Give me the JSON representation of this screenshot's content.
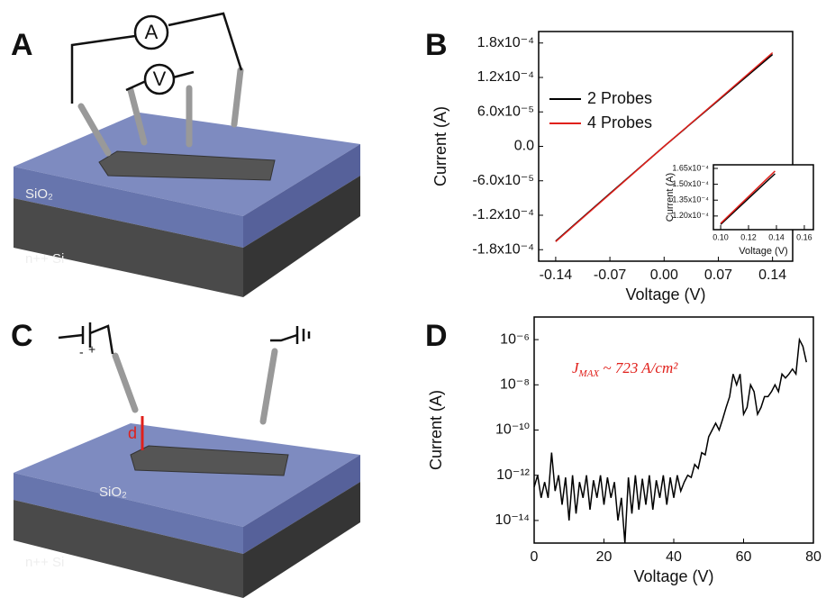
{
  "diagram_a": {
    "panel": "A",
    "ammeter": "A",
    "voltmeter": "V",
    "oxide": "SiO₂",
    "substrate": "n++ Si"
  },
  "diagram_c": {
    "panel": "C",
    "bias_minus": "-",
    "bias_plus": "+",
    "gap": "d",
    "oxide": "SiO₂",
    "substrate": "n++ Si"
  },
  "chart_data": [
    {
      "type": "line",
      "panel": "B",
      "x_label": "Voltage (V)",
      "y_label": "Current (A)",
      "xlim": [
        -0.162,
        0.166
      ],
      "ylim": [
        -0.0002,
        0.0002
      ],
      "xticks": [
        -0.14,
        -0.07,
        {
          "value": 0,
          "label": "0.00"
        },
        0.07,
        0.14
      ],
      "yticks": [
        {
          "value": 0.00018,
          "label": "1.8x10⁻⁴"
        },
        {
          "value": 0.00012,
          "label": "1.2x10⁻⁴"
        },
        {
          "value": 6e-05,
          "label": "6.0x10⁻⁵"
        },
        {
          "value": 0,
          "label": "0.0"
        },
        {
          "value": -6e-05,
          "label": "-6.0x10⁻⁵"
        },
        {
          "value": -0.00012,
          "label": "-1.2x10⁻⁴"
        },
        {
          "value": -0.00018,
          "label": "-1.8x10⁻⁴"
        }
      ],
      "x": [
        -0.14,
        -0.07,
        0,
        0.07,
        0.14
      ],
      "series": [
        {
          "name": "2 Probes",
          "color": "#000000",
          "values": [
            -0.000165,
            -8.2e-05,
            0,
            8e-05,
            0.00016
          ]
        },
        {
          "name": "4 Probes",
          "color": "#e0201b",
          "values": [
            -0.000166,
            -8.3e-05,
            0,
            8.1e-05,
            0.000163
          ]
        }
      ]
    },
    {
      "type": "line",
      "x_label": "Voltage (V)",
      "y_label": "Current (A)",
      "xlim": [
        0.0948,
        0.1665
      ],
      "ylim": [
        0.0001071,
        0.0001684
      ],
      "xticks": [
        {
          "value": 0.1,
          "label": "0.10"
        },
        0.12,
        0.14,
        0.16
      ],
      "yticks": [
        {
          "value": 0.000165,
          "label": "1.65x10⁻⁴"
        },
        {
          "value": 0.00015,
          "label": "1.50x10⁻⁴"
        },
        {
          "value": 0.000135,
          "label": "1.35x10⁻⁴"
        },
        {
          "value": 0.00012,
          "label": "1.20x10⁻⁴"
        }
      ],
      "x": [
        0.1,
        0.139
      ],
      "series": [
        {
          "name": "2 Probes",
          "color": "#000000",
          "values": [
            0.000112,
            0.00016
          ]
        },
        {
          "name": "4 Probes",
          "color": "#e0201b",
          "values": [
            0.000113,
            0.0001625
          ]
        }
      ]
    },
    {
      "type": "line",
      "panel": "D",
      "x_label": "Voltage (V)",
      "y_label": "Current (A)",
      "log_y": true,
      "annotation": {
        "symbol": "J",
        "subscript": "MAX",
        "text": " ~ 723 A/cm²"
      },
      "xlim": [
        0,
        80
      ],
      "ylim": [
        1e-15,
        1e-05
      ],
      "xticks": [
        0,
        20,
        40,
        60,
        80
      ],
      "yticks": [
        {
          "value": 1e-06,
          "label": "10⁻⁶"
        },
        {
          "value": 1e-08,
          "label": "10⁻⁸"
        },
        {
          "value": 1e-10,
          "label": "10⁻¹⁰"
        },
        {
          "value": 1e-12,
          "label": "10⁻¹²"
        },
        {
          "value": 1e-14,
          "label": "10⁻¹⁴"
        }
      ],
      "x": [
        0,
        1,
        2,
        3,
        4,
        5,
        6,
        7,
        8,
        9,
        10,
        11,
        12,
        13,
        14,
        15,
        16,
        17,
        18,
        19,
        20,
        21,
        22,
        23,
        24,
        25,
        26,
        27,
        28,
        29,
        30,
        31,
        32,
        33,
        34,
        35,
        36,
        37,
        38,
        39,
        40,
        41,
        42,
        43,
        44,
        45,
        46,
        47,
        48,
        49,
        50,
        51,
        52,
        53,
        54,
        55,
        56,
        57,
        58,
        59,
        60,
        61,
        62,
        63,
        64,
        65,
        66,
        67,
        68,
        69,
        70,
        71,
        72,
        73,
        74,
        75,
        76,
        77,
        78
      ],
      "series": [
        {
          "color": "#000000",
          "values": [
            3e-13,
            1e-12,
            1e-13,
            5e-13,
            1e-13,
            1e-11,
            2e-13,
            1e-12,
            5e-14,
            8e-13,
            1e-14,
            1e-12,
            2e-14,
            5e-13,
            1e-13,
            1e-12,
            3e-14,
            6e-13,
            1e-13,
            1e-12,
            5e-14,
            8e-13,
            1e-13,
            5e-13,
            1e-14,
            1e-13,
            1e-15,
            8e-13,
            2e-14,
            1e-12,
            3e-14,
            7e-13,
            5e-14,
            1e-12,
            3e-14,
            6e-13,
            1e-13,
            1e-12,
            5e-14,
            8e-13,
            1e-13,
            1e-12,
            2e-13,
            5e-13,
            1e-12,
            8e-13,
            3e-12,
            2e-12,
            1e-11,
            8e-12,
            5e-11,
            1e-10,
            2e-10,
            1e-10,
            3e-10,
            1e-09,
            3e-09,
            3e-08,
            1e-08,
            3e-08,
            5e-10,
            1e-09,
            1e-08,
            5e-09,
            5e-10,
            1e-09,
            3e-09,
            3e-09,
            5e-09,
            1e-08,
            5e-09,
            3e-08,
            2e-08,
            3e-08,
            5e-08,
            3e-08,
            1e-06,
            5e-07,
            1e-07
          ]
        }
      ]
    }
  ]
}
